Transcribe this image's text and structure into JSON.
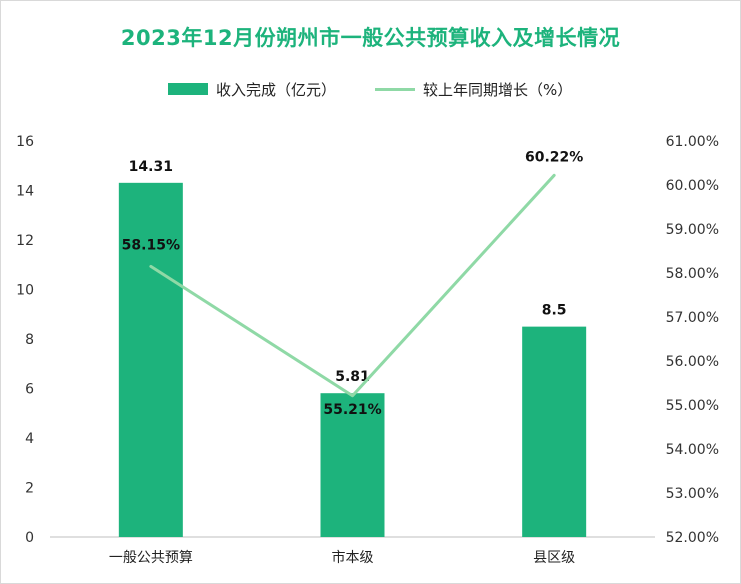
{
  "chart_data": {
    "type": "bar",
    "title": "2023年12月份朔州市一般公共预算收入及增长情况",
    "categories": [
      "一般公共预算",
      "市本级",
      "县区级"
    ],
    "series": [
      {
        "name": "收入完成（亿元）",
        "type": "bar",
        "axis": "left",
        "values": [
          14.31,
          5.81,
          8.5
        ],
        "labels": [
          "14.31",
          "5.81",
          "8.5"
        ],
        "color": "#1db37c"
      },
      {
        "name": "较上年同期增长（%）",
        "type": "line",
        "axis": "right",
        "values": [
          58.15,
          55.21,
          60.22
        ],
        "labels": [
          "58.15%",
          "55.21%",
          "60.22%"
        ],
        "color": "#8fd9a6"
      }
    ],
    "y_left": {
      "min": 0,
      "max": 16,
      "ticks": [
        "0",
        "2",
        "4",
        "6",
        "8",
        "10",
        "12",
        "14",
        "16"
      ]
    },
    "y_right": {
      "min": 52,
      "max": 61,
      "ticks": [
        "52.00%",
        "53.00%",
        "54.00%",
        "55.00%",
        "56.00%",
        "57.00%",
        "58.00%",
        "59.00%",
        "60.00%",
        "61.00%"
      ]
    },
    "legend_position": "top",
    "grid": false
  }
}
